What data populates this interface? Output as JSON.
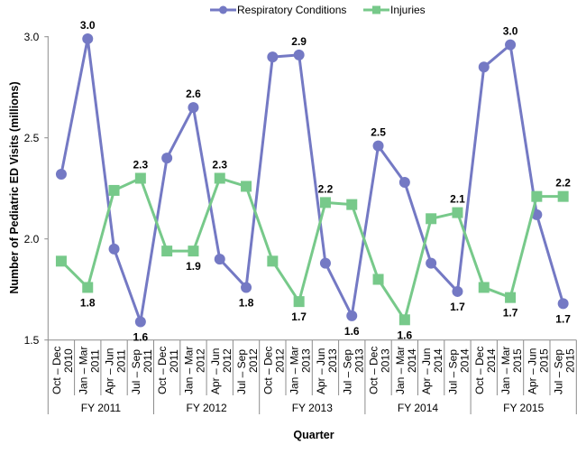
{
  "chart_data": {
    "type": "line",
    "title": "",
    "xlabel": "Quarter",
    "ylabel": "Number of Pediatric ED Visits (millions)",
    "ylim": [
      1.5,
      3.0
    ],
    "yticks": [
      "1.5",
      "2.0",
      "2.5",
      "3.0"
    ],
    "grid": false,
    "legend_position": "top",
    "categories": [
      [
        "Oct – Dec",
        "2010"
      ],
      [
        "Jan – Mar",
        "2011"
      ],
      [
        "Apr – Jun",
        "2011"
      ],
      [
        "Jul – Sep",
        "2011"
      ],
      [
        "Oct – Dec",
        "2011"
      ],
      [
        "Jan – Mar",
        "2012"
      ],
      [
        "Apr – Jun",
        "2012"
      ],
      [
        "Jul – Sep",
        "2012"
      ],
      [
        "Oct – Dec",
        "2012"
      ],
      [
        "Jan – Mar",
        "2013"
      ],
      [
        "Apr – Jun",
        "2013"
      ],
      [
        "Jul – Sep",
        "2013"
      ],
      [
        "Oct – Dec",
        "2013"
      ],
      [
        "Jan – Mar",
        "2014"
      ],
      [
        "Apr – Jun",
        "2014"
      ],
      [
        "Jul – Sep",
        "2014"
      ],
      [
        "Oct – Dec",
        "2014"
      ],
      [
        "Jan – Mar",
        "2015"
      ],
      [
        "Apr – Jun",
        "2015"
      ],
      [
        "Jul – Sep",
        "2015"
      ]
    ],
    "groups": [
      "FY 2011",
      "FY 2012",
      "FY 2013",
      "FY 2014",
      "FY 2015"
    ],
    "series": [
      {
        "name": "Respiratory Conditions",
        "color": "#7479c4",
        "marker": "circle",
        "values": [
          2.32,
          2.99,
          1.95,
          1.59,
          2.4,
          2.65,
          1.9,
          1.76,
          2.9,
          2.91,
          1.88,
          1.62,
          2.46,
          2.28,
          1.88,
          1.74,
          2.85,
          2.96,
          2.12,
          1.68
        ],
        "data_labels": {
          "1": "3.0",
          "3": "1.6",
          "5": "2.6",
          "7": "1.8",
          "9": "2.9",
          "11": "1.6",
          "12": "2.5",
          "15": "1.7",
          "17": "3.0",
          "19": "1.7"
        }
      },
      {
        "name": "Injuries",
        "color": "#77c98a",
        "marker": "square",
        "values": [
          1.89,
          1.76,
          2.24,
          2.3,
          1.94,
          1.94,
          2.3,
          2.26,
          1.89,
          1.69,
          2.18,
          2.17,
          1.8,
          1.6,
          2.1,
          2.13,
          1.76,
          1.71,
          2.21,
          2.21
        ],
        "data_labels": {
          "1": "1.8",
          "3": "2.3",
          "5": "1.9",
          "6": "2.3",
          "9": "1.7",
          "10": "2.2",
          "13": "1.6",
          "15": "2.1",
          "17": "1.7",
          "19": "2.2"
        }
      }
    ]
  }
}
